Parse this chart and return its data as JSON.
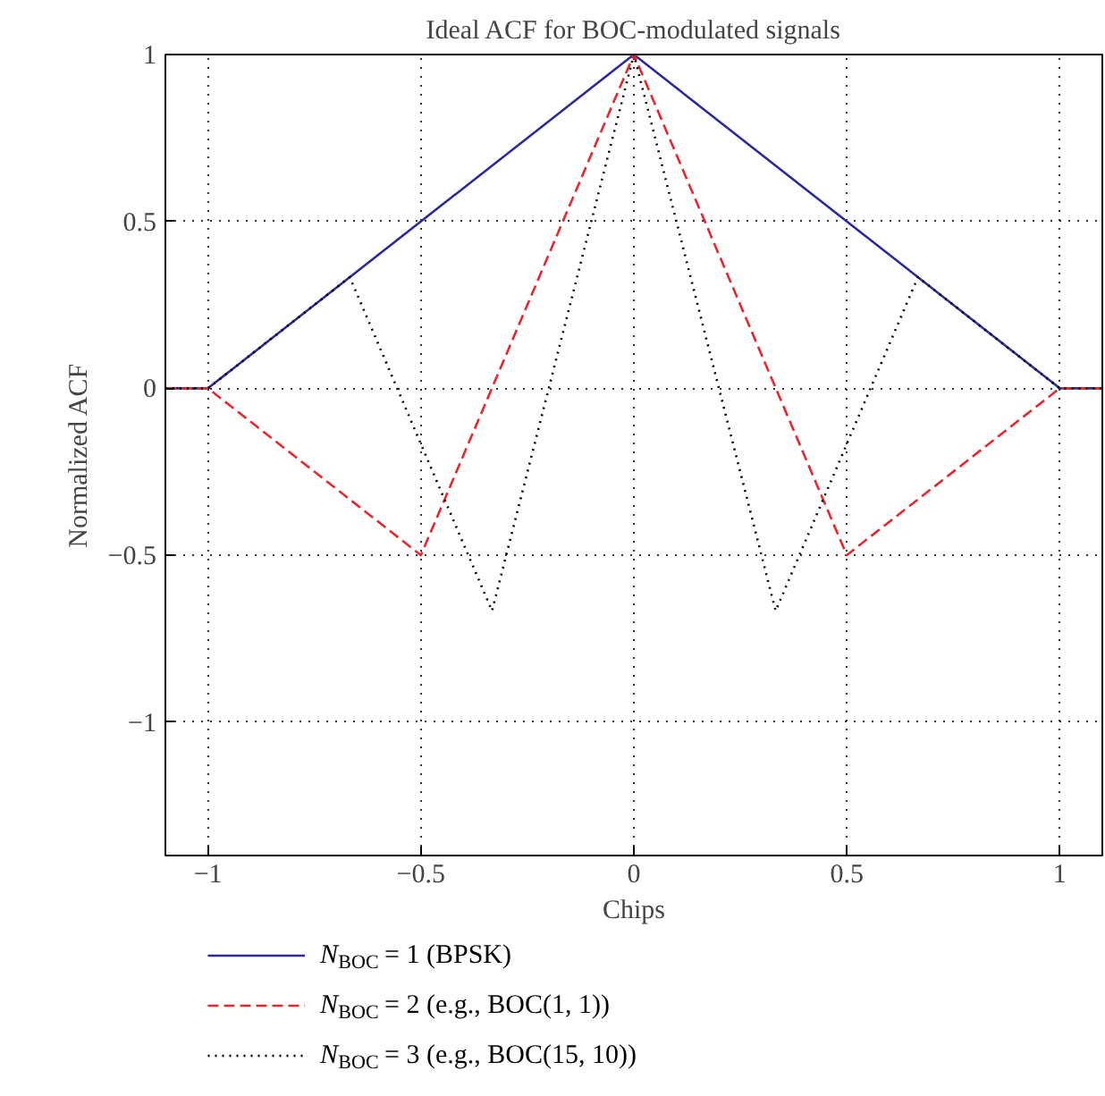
{
  "chart_data": {
    "type": "line",
    "title": "Ideal ACF for BOC-modulated signals",
    "xlabel": "Chips",
    "ylabel": "Normalized ACF",
    "xlim": [
      -1.1,
      1.1
    ],
    "ylim": [
      -1.4,
      1
    ],
    "xticks": [
      -1,
      -0.5,
      0,
      0.5,
      1
    ],
    "yticks": [
      -1,
      -0.5,
      0,
      0.5,
      1
    ],
    "grid": true,
    "legend": "bottom",
    "series": [
      {
        "name": "N$_{BOC}$ = 1 (BPSK)",
        "color": "#2a2a9c",
        "line_style": "solid",
        "x": [
          -1.1,
          -1,
          0,
          1,
          1.1
        ],
        "values": [
          0,
          0,
          1,
          0,
          0
        ]
      },
      {
        "name": "N$_{BOC}$ = 2 (e.g., BOC(1, 1))",
        "color": "#e8262b",
        "line_style": "dashed",
        "x": [
          -1.1,
          -1,
          -0.5,
          0,
          0.5,
          1,
          1.1
        ],
        "values": [
          0,
          0,
          -0.5,
          1,
          -0.5,
          0,
          0
        ]
      },
      {
        "name": "N$_{BOC}$ = 3 (e.g., BOC(15, 10))",
        "color": "#000000",
        "line_style": "dotted",
        "x": [
          -1.1,
          -1,
          -0.667,
          -0.333,
          0,
          0.333,
          0.667,
          1,
          1.1
        ],
        "values": [
          0,
          0,
          0.333,
          -0.667,
          1,
          -0.667,
          0.333,
          0,
          0
        ]
      }
    ]
  }
}
